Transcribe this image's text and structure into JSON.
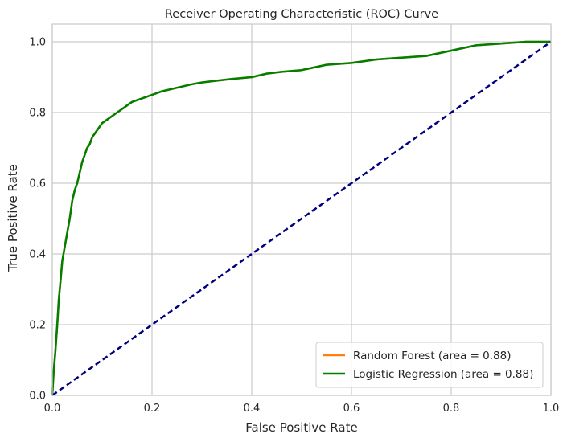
{
  "chart_data": {
    "type": "line",
    "title": "Receiver Operating Characteristic (ROC) Curve",
    "xlabel": "False Positive Rate",
    "ylabel": "True Positive Rate",
    "xlim": [
      0.0,
      1.0
    ],
    "ylim": [
      0.0,
      1.05
    ],
    "xticks": [
      "0.0",
      "0.2",
      "0.4",
      "0.6",
      "0.8",
      "1.0"
    ],
    "yticks": [
      "0.0",
      "0.2",
      "0.4",
      "0.6",
      "0.8",
      "1.0"
    ],
    "grid": true,
    "legend_position": "lower-right",
    "series": [
      {
        "name": "Random Forest (area = 0.88)",
        "color": "#ff7f0e",
        "x": [
          0.0,
          0.003,
          0.006,
          0.01,
          0.013,
          0.017,
          0.02,
          0.025,
          0.03,
          0.035,
          0.04,
          0.045,
          0.05,
          0.055,
          0.06,
          0.065,
          0.07,
          0.075,
          0.08,
          0.085,
          0.09,
          0.095,
          0.1,
          0.11,
          0.12,
          0.13,
          0.14,
          0.15,
          0.16,
          0.18,
          0.2,
          0.22,
          0.25,
          0.28,
          0.3,
          0.33,
          0.36,
          0.4,
          0.43,
          0.46,
          0.5,
          0.55,
          0.6,
          0.65,
          0.7,
          0.75,
          0.8,
          0.85,
          0.9,
          0.95,
          1.0
        ],
        "y": [
          0.0,
          0.07,
          0.12,
          0.2,
          0.27,
          0.33,
          0.38,
          0.42,
          0.46,
          0.5,
          0.55,
          0.58,
          0.6,
          0.63,
          0.66,
          0.68,
          0.7,
          0.71,
          0.73,
          0.74,
          0.75,
          0.76,
          0.77,
          0.78,
          0.79,
          0.8,
          0.81,
          0.82,
          0.83,
          0.84,
          0.85,
          0.86,
          0.87,
          0.88,
          0.885,
          0.89,
          0.895,
          0.9,
          0.91,
          0.915,
          0.92,
          0.935,
          0.94,
          0.95,
          0.955,
          0.96,
          0.975,
          0.99,
          0.995,
          1.0,
          1.0
        ]
      },
      {
        "name": "Logistic Regression (area = 0.88)",
        "color": "#008000",
        "x": [
          0.0,
          0.003,
          0.006,
          0.01,
          0.013,
          0.017,
          0.02,
          0.025,
          0.03,
          0.035,
          0.04,
          0.045,
          0.05,
          0.055,
          0.06,
          0.065,
          0.07,
          0.075,
          0.08,
          0.085,
          0.09,
          0.095,
          0.1,
          0.11,
          0.12,
          0.13,
          0.14,
          0.15,
          0.16,
          0.18,
          0.2,
          0.22,
          0.25,
          0.28,
          0.3,
          0.33,
          0.36,
          0.4,
          0.43,
          0.46,
          0.5,
          0.55,
          0.6,
          0.65,
          0.7,
          0.75,
          0.8,
          0.85,
          0.9,
          0.95,
          1.0
        ],
        "y": [
          0.0,
          0.07,
          0.12,
          0.2,
          0.27,
          0.33,
          0.38,
          0.42,
          0.46,
          0.5,
          0.55,
          0.58,
          0.6,
          0.63,
          0.66,
          0.68,
          0.7,
          0.71,
          0.73,
          0.74,
          0.75,
          0.76,
          0.77,
          0.78,
          0.79,
          0.8,
          0.81,
          0.82,
          0.83,
          0.84,
          0.85,
          0.86,
          0.87,
          0.88,
          0.885,
          0.89,
          0.895,
          0.9,
          0.91,
          0.915,
          0.92,
          0.935,
          0.94,
          0.95,
          0.955,
          0.96,
          0.975,
          0.99,
          0.995,
          1.0,
          1.0
        ]
      },
      {
        "name": "",
        "color": "#000080",
        "dashed": true,
        "x": [
          0.0,
          1.0
        ],
        "y": [
          0.0,
          1.0
        ]
      }
    ]
  }
}
